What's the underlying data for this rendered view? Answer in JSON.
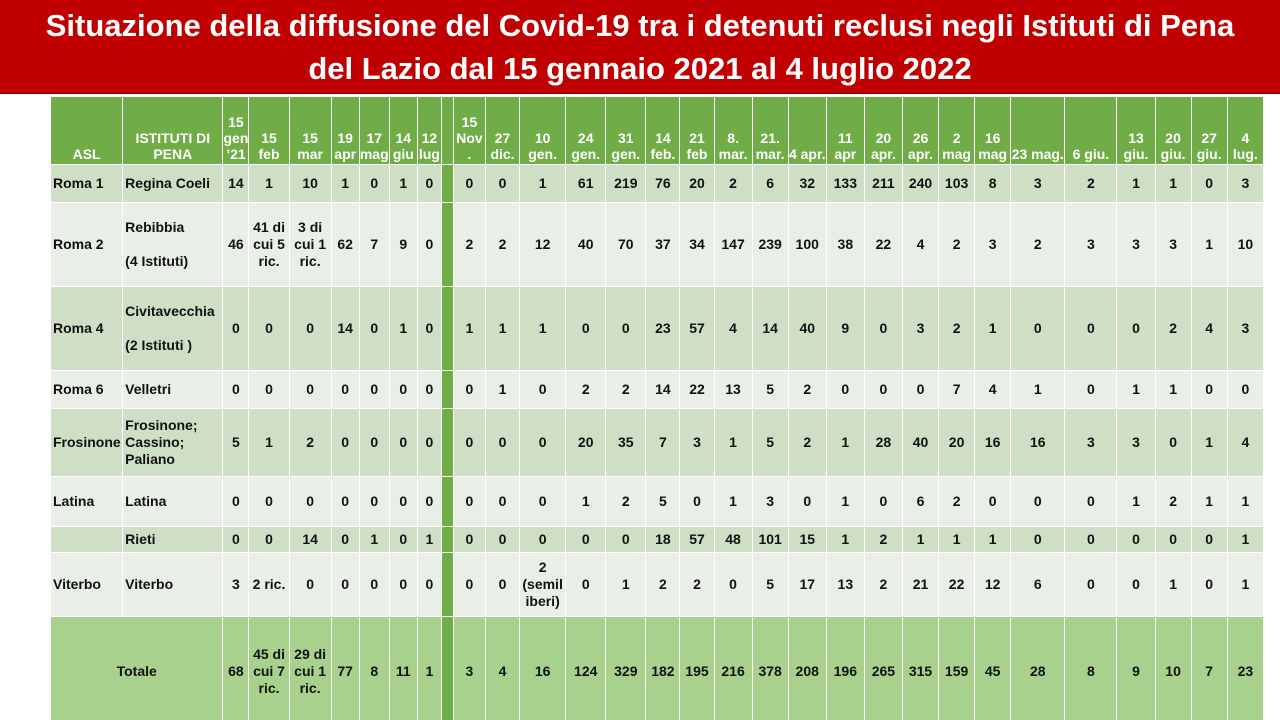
{
  "title": {
    "line1": "Situazione della diffusione del Covid-19 tra i detenuti reclusi negli Istituti di Pena",
    "line2": "del Lazio dal 15 gennaio 2021 al 4 luglio 2022"
  },
  "header": {
    "asl": "ASL",
    "istituti": "ISTITUTI DI PENA",
    "dates_a": [
      "15 gen ’21",
      "15 feb",
      "15 mar",
      "19 apr",
      "17 mag",
      "14 giu",
      "12 lug"
    ],
    "dates_b": [
      "15 Nov .",
      "27 dic.",
      "10 gen.",
      "24 gen.",
      "31 gen.",
      "14 feb.",
      "21 feb",
      "8. mar.",
      "21. mar.",
      "4 apr.",
      "11 apr",
      "20 apr.",
      "26 apr.",
      "2 mag",
      "16 mag",
      "23 mag.",
      "6 giu.",
      "13 giu.",
      "20 giu.",
      "27 giu.",
      "4 lug."
    ]
  },
  "rows": [
    {
      "asl": "Roma 1",
      "ist1": "Regina Coeli",
      "ist2": "",
      "a": [
        "14",
        "1",
        "10",
        "1",
        "0",
        "1",
        "0"
      ],
      "b": [
        "0",
        "0",
        "1",
        "61",
        "219",
        "76",
        "20",
        "2",
        "6",
        "32",
        "133",
        "211",
        "240",
        "103",
        "8",
        "3",
        "2",
        "1",
        "1",
        "0",
        "3"
      ]
    },
    {
      "asl": "Roma 2",
      "ist1": "Rebibbia",
      "ist2": "(4 Istituti)",
      "a": [
        "46",
        "41 di cui 5 ric.",
        "3 di cui 1 ric.",
        "62",
        "7",
        "9",
        "0"
      ],
      "b": [
        "2",
        "2",
        "12",
        "40",
        "70",
        "37",
        "34",
        "147",
        "239",
        "100",
        "38",
        "22",
        "4",
        "2",
        "3",
        "2",
        "3",
        "3",
        "3",
        "1",
        "10"
      ]
    },
    {
      "asl": "Roma 4",
      "ist1": "Civitavecchia",
      "ist2": "(2 Istituti )",
      "a": [
        "0",
        "0",
        "0",
        "14",
        "0",
        "1",
        "0"
      ],
      "b": [
        "1",
        "1",
        "1",
        "0",
        "0",
        "23",
        "57",
        "4",
        "14",
        "40",
        "9",
        "0",
        "3",
        "2",
        "1",
        "0",
        "0",
        "0",
        "2",
        "4",
        "3"
      ]
    },
    {
      "asl": "Roma 6",
      "ist1": "Velletri",
      "ist2": "",
      "a": [
        "0",
        "0",
        "0",
        "0",
        "0",
        "0",
        "0"
      ],
      "b": [
        "0",
        "1",
        "0",
        "2",
        "2",
        "14",
        "22",
        "13",
        "5",
        "2",
        "0",
        "0",
        "0",
        "7",
        "4",
        "1",
        "0",
        "1",
        "1",
        "0",
        "0"
      ]
    },
    {
      "asl": "Frosinone",
      "ist1": "Frosinone; Cassino; Paliano",
      "ist2": "",
      "a": [
        "5",
        "1",
        "2",
        "0",
        "0",
        "0",
        "0"
      ],
      "b": [
        "0",
        "0",
        "0",
        "20",
        "35",
        "7",
        "3",
        "1",
        "5",
        "2",
        "1",
        "28",
        "40",
        "20",
        "16",
        "16",
        "3",
        "3",
        "0",
        "1",
        "4"
      ]
    },
    {
      "asl": "Latina",
      "ist1": "Latina",
      "ist2": "",
      "a": [
        "0",
        "0",
        "0",
        "0",
        "0",
        "0",
        "0"
      ],
      "b": [
        "0",
        "0",
        "0",
        "1",
        "2",
        "5",
        "0",
        "1",
        "3",
        "0",
        "1",
        "0",
        "6",
        "2",
        "0",
        "0",
        "0",
        "1",
        "2",
        "1",
        "1"
      ]
    },
    {
      "asl": "",
      "ist1": "Rieti",
      "ist2": "",
      "a": [
        "0",
        "0",
        "14",
        "0",
        "1",
        "0",
        "1"
      ],
      "b": [
        "0",
        "0",
        "0",
        "0",
        "0",
        "18",
        "57",
        "48",
        "101",
        "15",
        "1",
        "2",
        "1",
        "1",
        "1",
        "0",
        "0",
        "0",
        "0",
        "0",
        "1"
      ]
    },
    {
      "asl": "Viterbo",
      "ist1": "Viterbo",
      "ist2": "",
      "a": [
        "3",
        "2 ric.",
        "0",
        "0",
        "0",
        "0",
        "0"
      ],
      "b": [
        "0",
        "0",
        "2 (semil iberi)",
        "0",
        "1",
        "2",
        "2",
        "0",
        "5",
        "17",
        "13",
        "2",
        "21",
        "22",
        "12",
        "6",
        "0",
        "0",
        "1",
        "0",
        "1"
      ]
    }
  ],
  "total": {
    "label": "Totale",
    "a": [
      "68",
      "45 di cui 7 ric.",
      "29 di cui 1 ric.",
      "77",
      "8",
      "11",
      "1"
    ],
    "b": [
      "3",
      "4",
      "16",
      "124",
      "329",
      "182",
      "195",
      "216",
      "378",
      "208",
      "196",
      "265",
      "315",
      "159",
      "45",
      "28",
      "8",
      "9",
      "10",
      "7",
      "23"
    ]
  }
}
